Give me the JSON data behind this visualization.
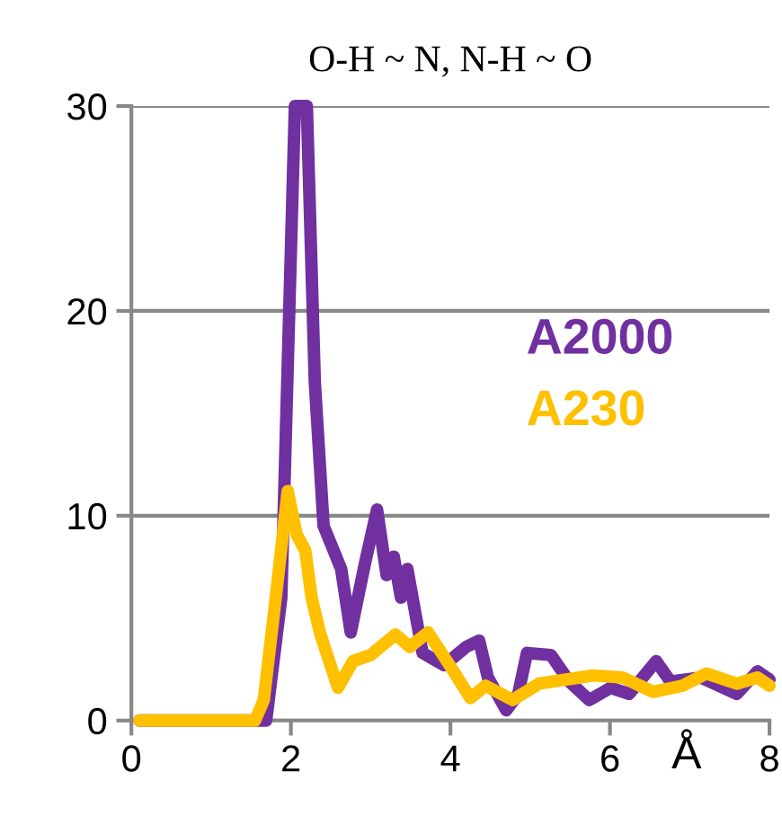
{
  "chart_data": {
    "type": "line",
    "title": "O-H ~ N, N-H ~ O",
    "xlabel": "Å",
    "xlim": [
      0,
      8
    ],
    "xticks": [
      0,
      2,
      4,
      6,
      8
    ],
    "ylim": [
      0,
      30
    ],
    "yticks": [
      0,
      10,
      20,
      30
    ],
    "grid": "y",
    "legend": "right",
    "marker": "none",
    "line_style": "solid",
    "series": [
      {
        "name": "A2000",
        "color": "#7030a0",
        "x": [
          0.1,
          1.0,
          1.69,
          1.88,
          2.05,
          2.11,
          2.2,
          2.3,
          2.41,
          2.63,
          2.75,
          2.93,
          3.08,
          3.2,
          3.29,
          3.38,
          3.46,
          3.65,
          3.92,
          4.2,
          4.36,
          4.47,
          4.7,
          4.85,
          4.96,
          5.26,
          5.49,
          5.74,
          6.01,
          6.24,
          6.58,
          6.76,
          7.14,
          7.59,
          7.85,
          8.0
        ],
        "values": [
          0,
          0,
          0,
          6,
          30,
          30,
          30,
          16.5,
          9.5,
          7.4,
          4.3,
          7.7,
          10.3,
          7.1,
          8,
          6,
          7.4,
          3.3,
          2.7,
          3.6,
          3.9,
          2.1,
          0.5,
          1.3,
          3.3,
          3.2,
          1.9,
          1.0,
          1.6,
          1.3,
          2.9,
          1.9,
          2.1,
          1.3,
          2.4,
          2.0
        ]
      },
      {
        "name": "A230",
        "color": "#ffc000",
        "x": [
          0.1,
          1.0,
          1.55,
          1.66,
          1.81,
          1.96,
          2.07,
          2.18,
          2.26,
          2.37,
          2.59,
          2.78,
          3.0,
          3.31,
          3.49,
          3.72,
          3.99,
          4.25,
          4.44,
          4.78,
          5.11,
          5.79,
          6.16,
          6.54,
          6.91,
          7.21,
          7.59,
          7.85,
          8.0
        ],
        "values": [
          0,
          0,
          0,
          1,
          6,
          11.2,
          9.1,
          8.3,
          6,
          4.2,
          1.6,
          2.9,
          3.2,
          4.2,
          3.6,
          4.3,
          2.7,
          1.1,
          1.7,
          1.0,
          1.8,
          2.2,
          2.1,
          1.4,
          1.7,
          2.3,
          1.8,
          2.1,
          1.7
        ]
      }
    ]
  }
}
